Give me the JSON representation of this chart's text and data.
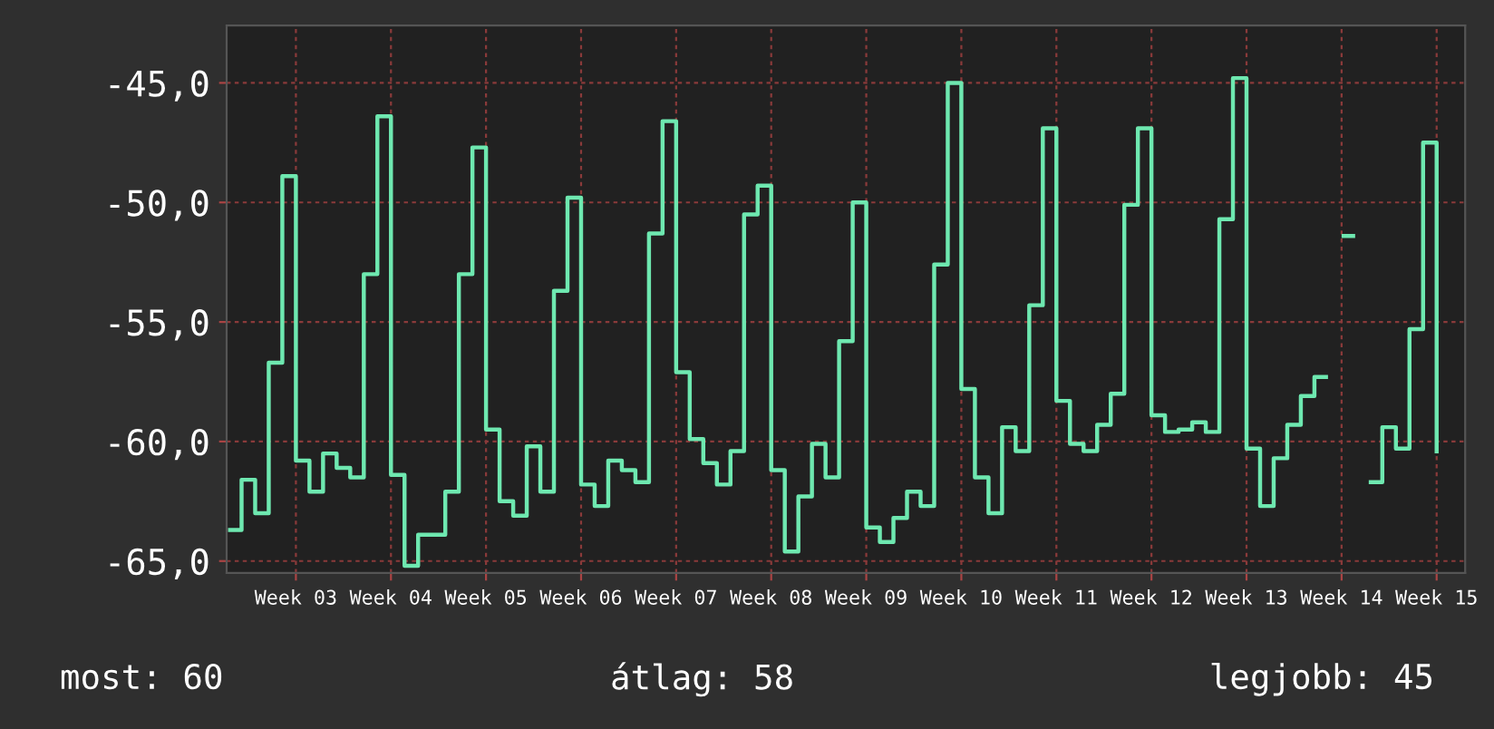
{
  "chart_data": {
    "type": "step",
    "categories": [
      null,
      null,
      null,
      null,
      null,
      "Week 03",
      null,
      null,
      null,
      null,
      null,
      null,
      "Week 04",
      null,
      null,
      null,
      null,
      null,
      null,
      "Week 05",
      null,
      null,
      null,
      null,
      null,
      null,
      "Week 06",
      null,
      null,
      null,
      null,
      null,
      null,
      "Week 07",
      null,
      null,
      null,
      null,
      null,
      null,
      "Week 08",
      null,
      null,
      null,
      null,
      null,
      null,
      "Week 09",
      null,
      null,
      null,
      null,
      null,
      null,
      "Week 10",
      null,
      null,
      null,
      null,
      null,
      null,
      "Week 11",
      null,
      null,
      null,
      null,
      null,
      null,
      "Week 12",
      null,
      null,
      null,
      null,
      null,
      null,
      "Week 13",
      null,
      null,
      null,
      null,
      null,
      null,
      "Week 14",
      null,
      null,
      null,
      null,
      null,
      null,
      "Week 15"
    ],
    "series": [
      {
        "color": "#6ee8b0",
        "values": [
          -63.7,
          -61.6,
          -63.0,
          -56.7,
          -48.9,
          -60.8,
          -62.1,
          -60.5,
          -61.1,
          -61.5,
          -53.0,
          -46.4,
          -61.4,
          -65.2,
          -63.9,
          -63.9,
          -62.1,
          -53.0,
          -47.7,
          -59.5,
          -62.5,
          -63.1,
          -60.2,
          -62.1,
          -53.7,
          -49.8,
          -61.8,
          -62.7,
          -60.8,
          -61.2,
          -61.7,
          -51.3,
          -46.6,
          -57.1,
          -59.9,
          -60.9,
          -61.8,
          -60.4,
          -50.5,
          -49.3,
          -61.2,
          -64.6,
          -62.3,
          -60.1,
          -61.5,
          -55.8,
          -50.0,
          -63.6,
          -64.2,
          -63.2,
          -62.1,
          -62.7,
          -52.6,
          -45.0,
          -57.8,
          -61.5,
          -63.0,
          -59.4,
          -60.4,
          -54.3,
          -46.9,
          -58.3,
          -60.1,
          -60.4,
          -59.3,
          -58.0,
          -50.1,
          -46.9,
          -58.9,
          -59.6,
          -59.5,
          -59.2,
          -59.6,
          -50.7,
          -44.8,
          -60.3,
          -62.7,
          -60.7,
          -59.3,
          -58.1,
          -57.3,
          null,
          -51.4,
          null,
          -61.7,
          -59.4,
          -60.3,
          -55.3,
          -47.5,
          -60.5
        ]
      }
    ],
    "ylim": [
      -65.5,
      -42.6
    ],
    "yticks": [
      {
        "value": -65,
        "label": "-65,0"
      },
      {
        "value": -60,
        "label": "-60,0"
      },
      {
        "value": -55,
        "label": "-55,0"
      },
      {
        "value": -50,
        "label": "-50,0"
      },
      {
        "value": -45,
        "label": "-45,0"
      }
    ],
    "grid": true,
    "annotations": [
      "most: 60",
      "átlag: 58",
      "legjobb: 45"
    ]
  }
}
